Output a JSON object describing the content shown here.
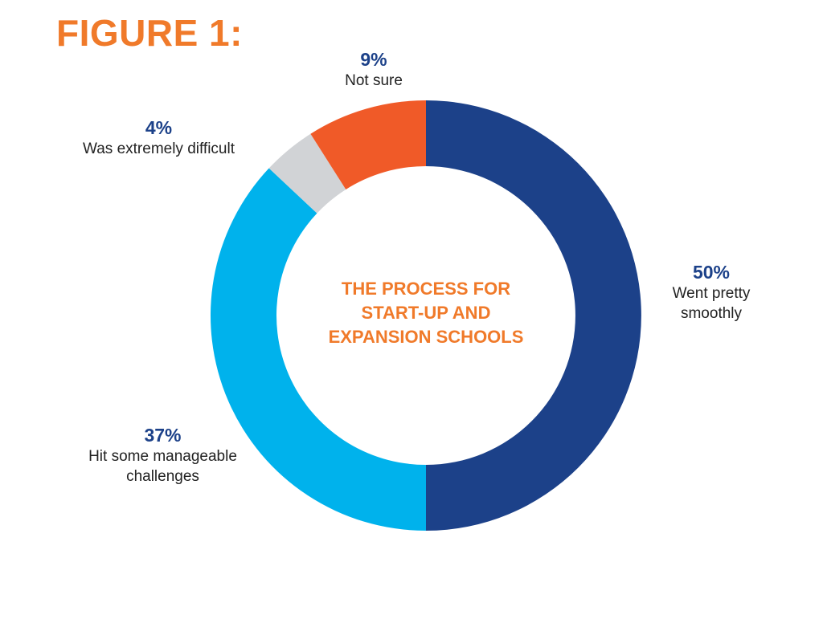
{
  "figure_label": "FIGURE 1:",
  "chart_data": {
    "type": "pie",
    "title_lines": [
      "THE PROCESS FOR",
      "START-UP AND",
      "EXPANSION SCHOOLS"
    ],
    "slices": [
      {
        "label_lines": [
          "Went pretty",
          "smoothly"
        ],
        "value": 50,
        "value_label": "50%",
        "color": "#1c4189"
      },
      {
        "label_lines": [
          "Hit some manageable",
          "challenges"
        ],
        "value": 37,
        "value_label": "37%",
        "color": "#00b2ec"
      },
      {
        "label_lines": [
          "Was extremely difficult"
        ],
        "value": 4,
        "value_label": "4%",
        "color": "#d1d3d6"
      },
      {
        "label_lines": [
          "Not sure"
        ],
        "value": 9,
        "value_label": "9%",
        "color": "#f05a28"
      }
    ]
  }
}
